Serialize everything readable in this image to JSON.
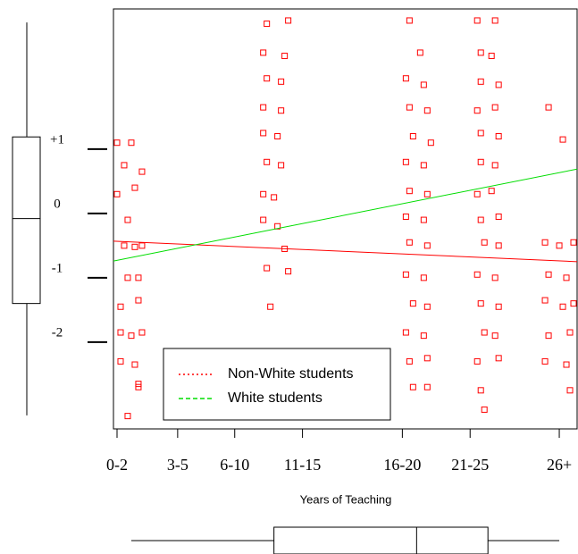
{
  "chart_data": {
    "type": "scatter",
    "x_label": "Years of Teaching",
    "xlim": [
      0.5,
      13.5
    ],
    "xticks": [
      {
        "value": 0.6,
        "label": "0-2"
      },
      {
        "value": 2.3,
        "label": "3-5"
      },
      {
        "value": 3.9,
        "label": "6-10"
      },
      {
        "value": 5.8,
        "label": "11-15"
      },
      {
        "value": 8.6,
        "label": "16-20"
      },
      {
        "value": 10.5,
        "label": "21-25"
      },
      {
        "value": 13,
        "label": "26+"
      }
    ],
    "ylim": [
      -3.35,
      3.18
    ],
    "yticks": [
      {
        "value": 1,
        "label": "+1"
      },
      0,
      -1,
      -2
    ],
    "points": {
      "color": "#ff0000",
      "x": [
        0.6,
        1.0,
        0.8,
        1.3,
        0.6,
        1.1,
        0.9,
        0.8,
        1.1,
        1.3,
        0.9,
        1.2,
        0.7,
        1.2,
        0.7,
        1.0,
        1.3,
        0.7,
        1.1,
        1.2,
        0.9,
        1.2,
        4.8,
        5.4,
        4.7,
        5.3,
        4.8,
        5.2,
        4.7,
        5.2,
        4.7,
        5.1,
        4.8,
        5.2,
        4.7,
        5.0,
        4.7,
        5.1,
        5.3,
        4.8,
        5.4,
        4.9,
        8.8,
        9.1,
        8.7,
        9.2,
        8.8,
        9.3,
        8.9,
        9.4,
        8.7,
        9.2,
        8.8,
        9.3,
        8.7,
        9.2,
        8.8,
        9.3,
        8.7,
        9.2,
        8.9,
        9.3,
        8.7,
        9.2,
        8.8,
        9.3,
        8.9,
        9.3,
        10.7,
        11.2,
        10.8,
        11.1,
        10.8,
        11.3,
        10.7,
        11.2,
        10.8,
        11.3,
        10.8,
        11.2,
        10.7,
        11.1,
        10.8,
        11.3,
        10.9,
        11.3,
        10.7,
        11.2,
        10.8,
        11.3,
        10.9,
        11.2,
        10.7,
        11.3,
        10.8,
        10.9,
        12.7,
        13.1,
        12.6,
        13.0,
        13.4,
        12.7,
        13.2,
        12.6,
        13.1,
        13.4,
        12.7,
        13.3,
        12.6,
        13.2,
        13.3
      ],
      "y": [
        1.1,
        1.1,
        0.75,
        0.65,
        0.3,
        0.4,
        -0.1,
        -0.5,
        -0.52,
        -0.5,
        -1.0,
        -1.0,
        -1.45,
        -1.35,
        -1.85,
        -1.9,
        -1.85,
        -2.3,
        -2.35,
        -2.7,
        -3.15,
        -2.65,
        2.95,
        3.0,
        2.5,
        2.45,
        2.1,
        2.05,
        1.65,
        1.6,
        1.25,
        1.2,
        0.8,
        0.75,
        0.3,
        0.25,
        -0.1,
        -0.2,
        -0.55,
        -0.85,
        -0.9,
        -1.45,
        3.0,
        2.5,
        2.1,
        2.0,
        1.65,
        1.6,
        1.2,
        1.1,
        0.8,
        0.75,
        0.35,
        0.3,
        -0.05,
        -0.1,
        -0.45,
        -0.5,
        -0.95,
        -1.0,
        -1.4,
        -1.45,
        -1.85,
        -1.9,
        -2.3,
        -2.25,
        -2.7,
        -2.7,
        3.0,
        3.0,
        2.5,
        2.45,
        2.05,
        2.0,
        1.6,
        1.65,
        1.25,
        1.2,
        0.8,
        0.75,
        0.3,
        0.35,
        -0.1,
        -0.05,
        -0.45,
        -0.5,
        -0.95,
        -1.0,
        -1.4,
        -1.45,
        -1.85,
        -1.9,
        -2.3,
        -2.25,
        -2.75,
        -3.05,
        1.65,
        1.15,
        -0.45,
        -0.5,
        -0.45,
        -0.95,
        -1.0,
        -1.35,
        -1.45,
        -1.4,
        -1.9,
        -1.85,
        -2.3,
        -2.35,
        -2.75
      ]
    },
    "series": [
      {
        "name": "Non-White students",
        "color": "#ff0000",
        "dash": "dotted",
        "x": [
          0.5,
          13.5
        ],
        "values": [
          -0.43,
          -0.75
        ]
      },
      {
        "name": "White students",
        "color": "#00dd00",
        "dash": "dashed",
        "x": [
          0.5,
          13.5
        ],
        "values": [
          -0.74,
          0.69
        ]
      }
    ],
    "y_boxplot": {
      "whisker_low": -3.14,
      "q1": -1.4,
      "median": -0.08,
      "q3": 1.19,
      "whisker_high": 2.97
    },
    "x_boxplot": {
      "whisker_low": 1,
      "q1": 5,
      "median": 9,
      "q3": 11,
      "whisker_high": 13
    }
  }
}
